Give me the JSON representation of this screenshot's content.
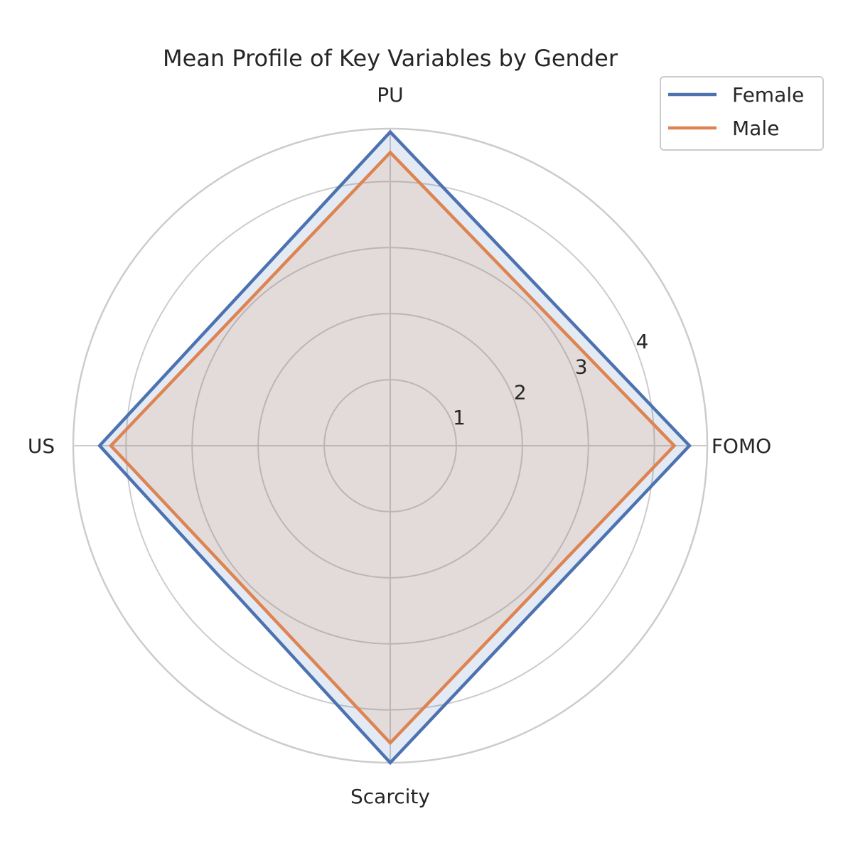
{
  "chart_data": {
    "type": "radar",
    "title": "Mean Profile of Key Variables by Gender",
    "axes": [
      "PU",
      "FOMO",
      "Scarcity",
      "US"
    ],
    "rmax": 4.8,
    "rticks": [
      1,
      2,
      3,
      4
    ],
    "rtick_labels": [
      "1",
      "2",
      "3",
      "4"
    ],
    "grid": true,
    "legend_position": "top-right",
    "series": [
      {
        "name": "Female",
        "values": [
          4.75,
          4.53,
          4.8,
          4.4
        ],
        "color": "#4c72b0"
      },
      {
        "name": "Male",
        "values": [
          4.44,
          4.3,
          4.5,
          4.23
        ],
        "color": "#dd8452"
      }
    ]
  }
}
